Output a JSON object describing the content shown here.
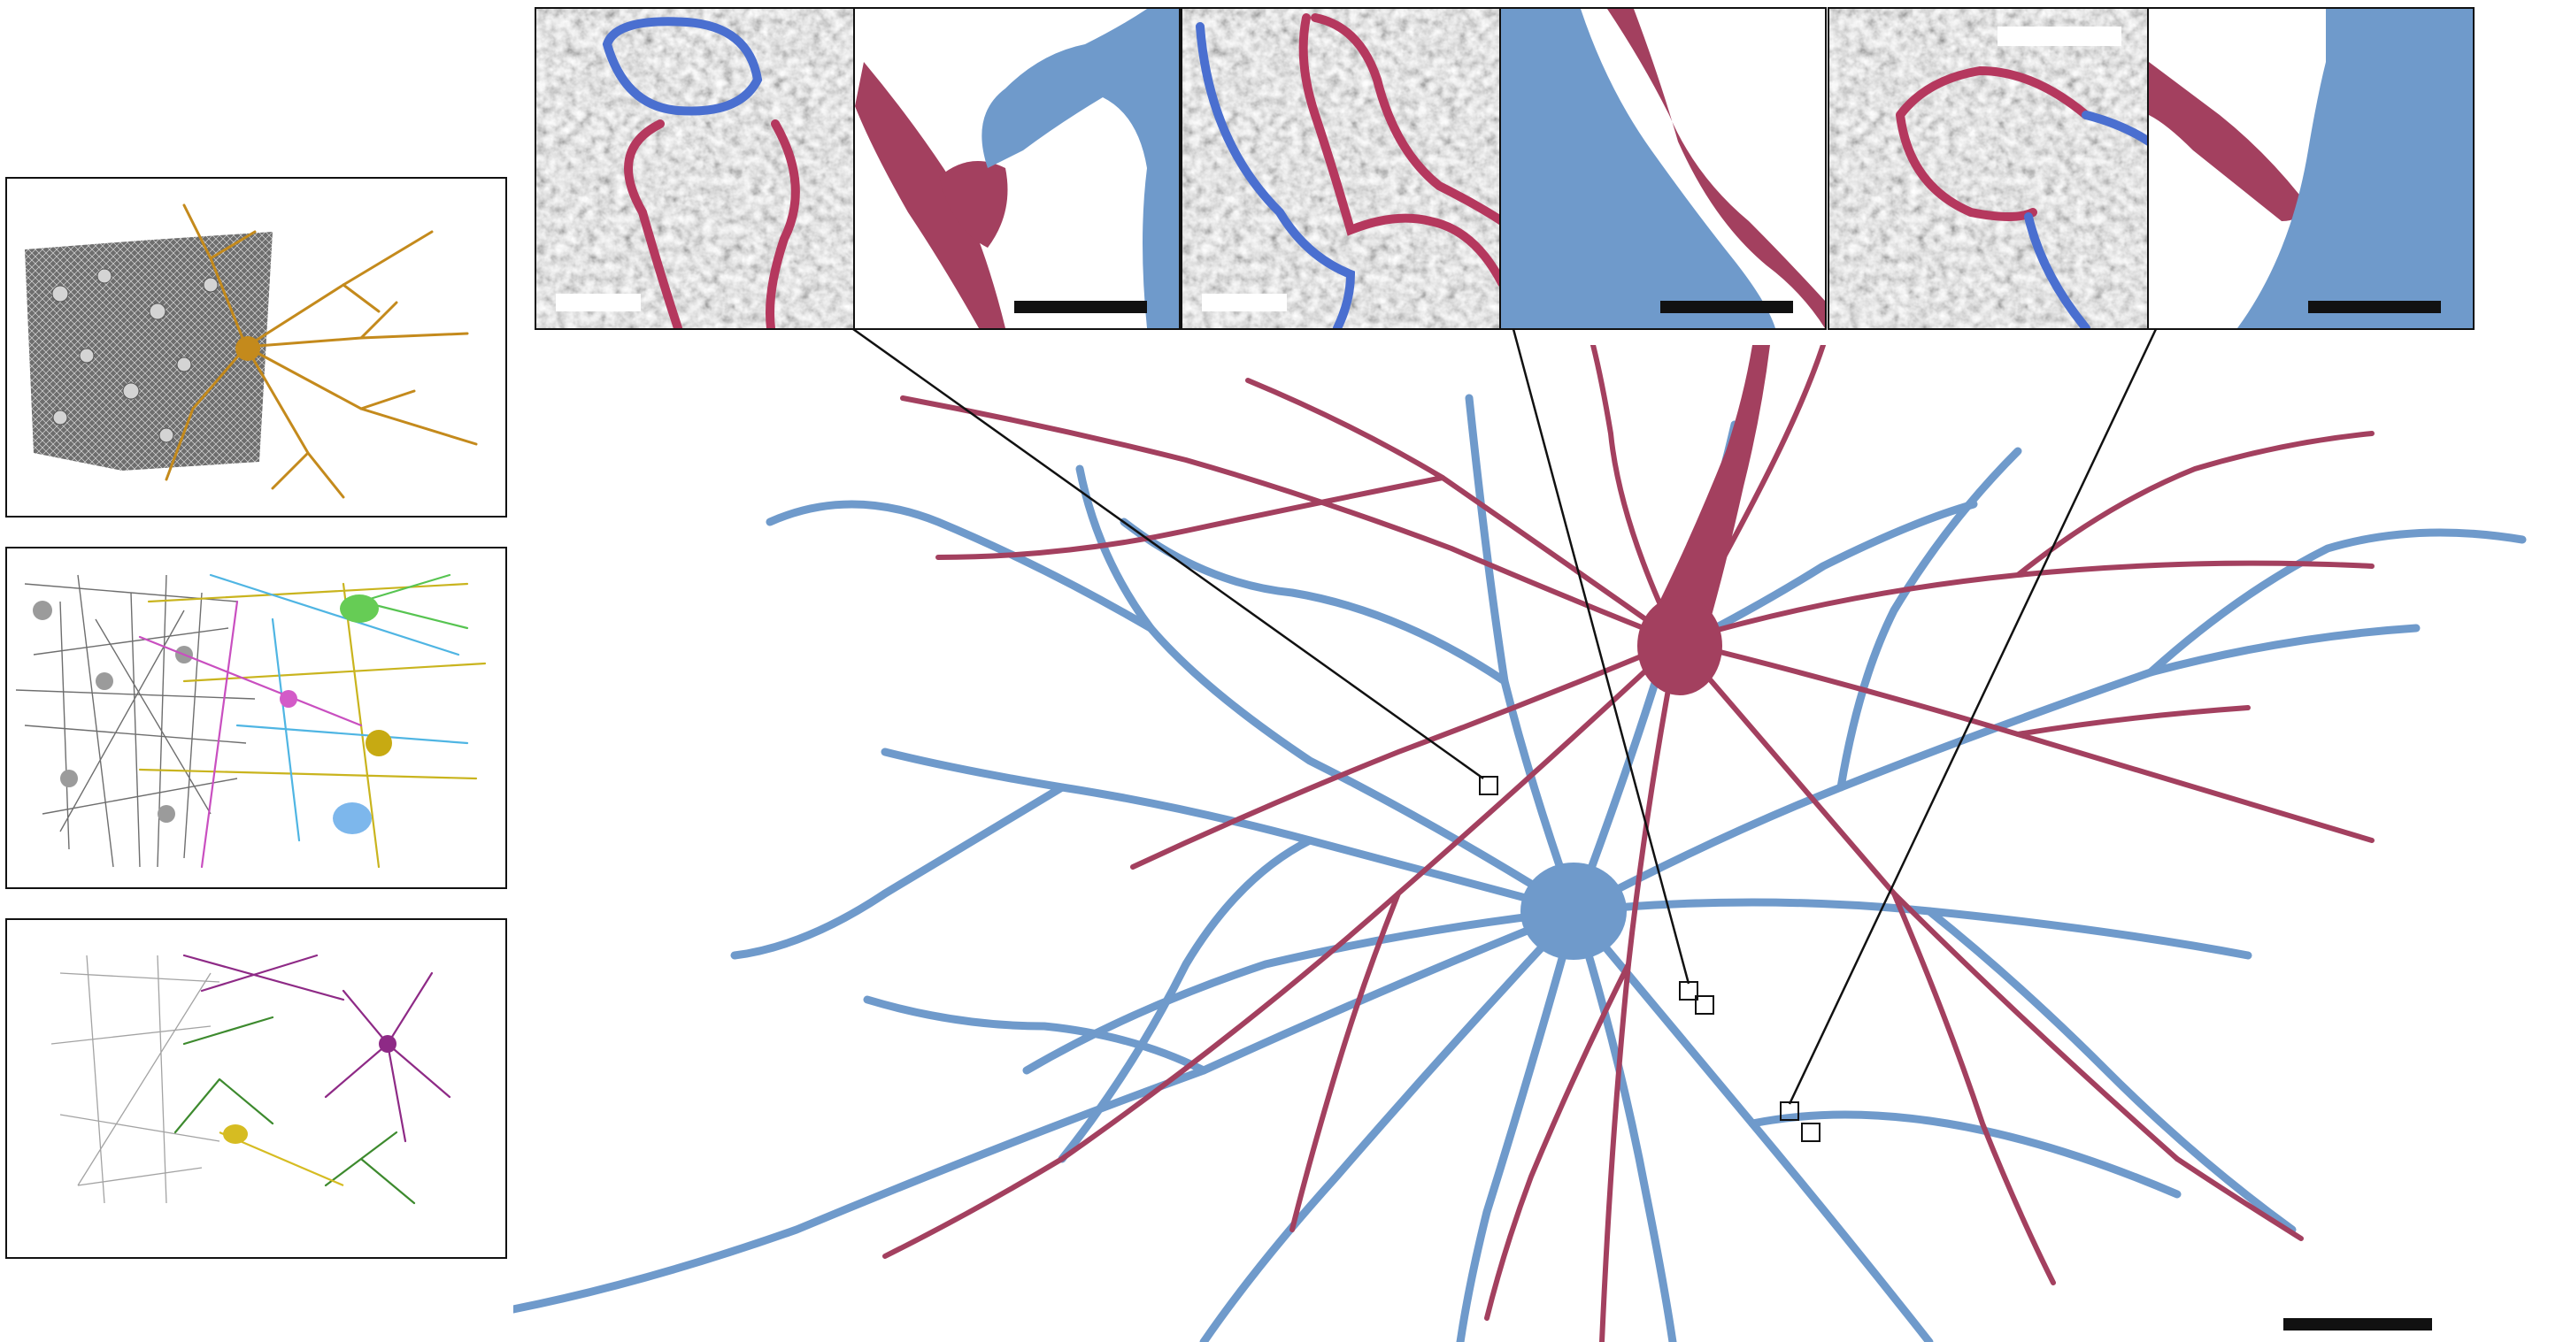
{
  "figure": {
    "colors": {
      "neuron_red": "#A3405F",
      "neuron_blue": "#6F9ACB",
      "trace_blue": "#4A6FD0",
      "trace_red": "#B5385E",
      "gold": "#C48A1C",
      "magenta": "#8E2A86",
      "green": "#3D8A2E",
      "yellow": "#C9B41E",
      "gray": "#8A8A8A",
      "scalebar": "#111111",
      "em_white_bar": "#FFFFFF"
    },
    "left_panels": [
      {
        "name": "dense-reconstruction-gold-neuron",
        "icon": "gold-neuron-over-gray-tissue"
      },
      {
        "name": "multicolor-neurons-subset",
        "icon": "multicolor-neurons"
      },
      {
        "name": "magenta-green-neurons-subset",
        "icon": "magenta-green-neurons"
      }
    ],
    "insets": [
      {
        "name": "synapse-1-em",
        "type": "electron-micrograph"
      },
      {
        "name": "synapse-1-3d",
        "type": "surface-render"
      },
      {
        "name": "synapse-2-em",
        "type": "electron-micrograph"
      },
      {
        "name": "synapse-2-3d",
        "type": "surface-render"
      },
      {
        "name": "synapse-3-em",
        "type": "electron-micrograph"
      },
      {
        "name": "synapse-3-3d",
        "type": "surface-render"
      }
    ],
    "main_view": {
      "name": "pair-of-reconstructed-neurons",
      "cells": [
        "red-pyramidal-neuron",
        "blue-neuron"
      ]
    }
  }
}
